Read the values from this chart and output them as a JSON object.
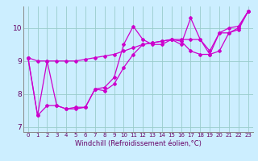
{
  "background_color": "#cceeff",
  "line_color": "#cc00cc",
  "grid_color": "#99cccc",
  "text_color": "#660066",
  "xlim": [
    -0.5,
    23.5
  ],
  "ylim": [
    6.85,
    10.65
  ],
  "yticks": [
    7,
    8,
    9,
    10
  ],
  "xticks": [
    0,
    1,
    2,
    3,
    4,
    5,
    6,
    7,
    8,
    9,
    10,
    11,
    12,
    13,
    14,
    15,
    16,
    17,
    18,
    19,
    20,
    21,
    22,
    23
  ],
  "xlabel": "Windchill (Refroidissement éolien,°C)",
  "series1_x": [
    0,
    1,
    2,
    3,
    4,
    5,
    6,
    7,
    8,
    9,
    10,
    11,
    12,
    13,
    14,
    15,
    16,
    17,
    18,
    19,
    20,
    21,
    22,
    23
  ],
  "series1_y": [
    9.1,
    7.35,
    9.0,
    7.65,
    7.55,
    7.55,
    7.6,
    8.15,
    8.2,
    8.5,
    9.5,
    10.05,
    9.65,
    9.5,
    9.5,
    9.65,
    9.5,
    10.3,
    9.65,
    9.3,
    9.85,
    10.0,
    10.05,
    10.5
  ],
  "series2_x": [
    0,
    1,
    2,
    3,
    4,
    5,
    6,
    7,
    8,
    9,
    10,
    11,
    12,
    13,
    14,
    15,
    16,
    17,
    18,
    19,
    20,
    21,
    22,
    23
  ],
  "series2_y": [
    9.1,
    9.0,
    9.0,
    9.0,
    9.0,
    9.0,
    9.05,
    9.1,
    9.15,
    9.2,
    9.3,
    9.4,
    9.5,
    9.55,
    9.6,
    9.65,
    9.65,
    9.65,
    9.65,
    9.2,
    9.3,
    9.85,
    10.0,
    10.5
  ],
  "series3_x": [
    0,
    1,
    2,
    3,
    4,
    5,
    6,
    7,
    8,
    9,
    10,
    11,
    12,
    13,
    14,
    15,
    16,
    17,
    18,
    19,
    20,
    21,
    22,
    23
  ],
  "series3_y": [
    9.1,
    7.35,
    7.65,
    7.65,
    7.55,
    7.6,
    7.6,
    8.15,
    8.1,
    8.3,
    8.8,
    9.2,
    9.5,
    9.55,
    9.6,
    9.65,
    9.6,
    9.3,
    9.2,
    9.2,
    9.85,
    9.85,
    9.95,
    10.5
  ],
  "marker": "D",
  "marker_size": 2.0,
  "line_width": 0.9,
  "tick_fontsize": 5.0,
  "label_fontsize": 6.0
}
